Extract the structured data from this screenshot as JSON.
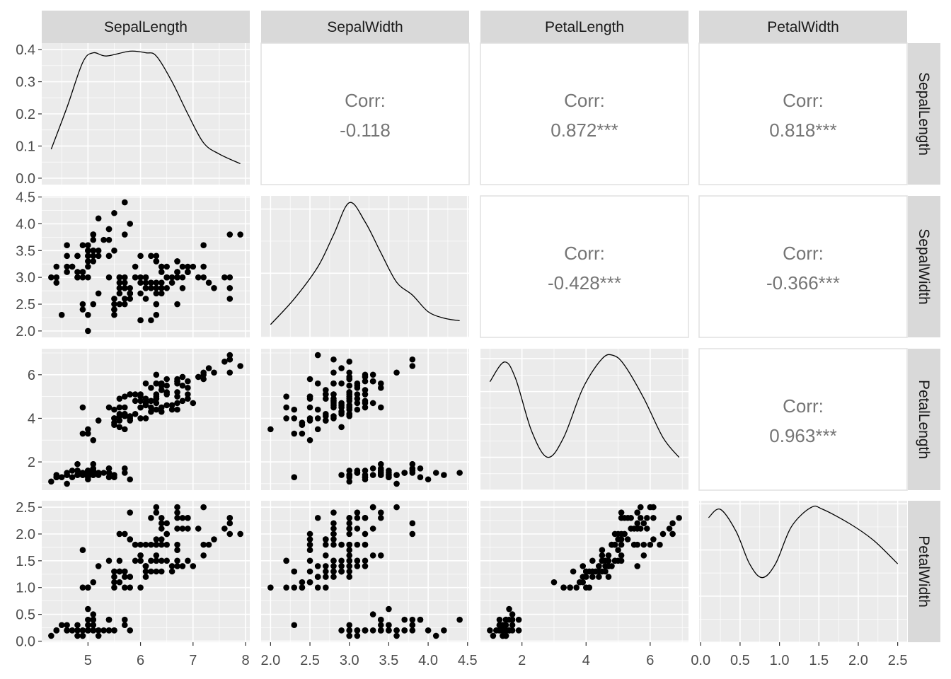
{
  "chart_data": {
    "type": "scatter-matrix",
    "variables": [
      "SepalLength",
      "SepalWidth",
      "PetalLength",
      "PetalWidth"
    ],
    "axes": {
      "SepalLength": {
        "range": [
          4.3,
          7.9
        ],
        "ticks": [
          5,
          6,
          7,
          8
        ],
        "tick_labels": [
          "5",
          "6",
          "7",
          "8"
        ]
      },
      "SepalWidth": {
        "range": [
          2.0,
          4.4
        ],
        "ticks": [
          2.0,
          2.5,
          3.0,
          3.5,
          4.0,
          4.5
        ],
        "tick_labels": [
          "2.0",
          "2.5",
          "3.0",
          "3.5",
          "4.0",
          "4.5"
        ]
      },
      "PetalLength": {
        "range": [
          1.0,
          6.9
        ],
        "ticks": [
          2,
          4,
          6
        ],
        "tick_labels": [
          "2",
          "4",
          "6"
        ]
      },
      "PetalWidth": {
        "range": [
          0.1,
          2.5
        ],
        "ticks": [
          0.0,
          0.5,
          1.0,
          1.5,
          2.0,
          2.5
        ],
        "tick_labels": [
          "0.0",
          "0.5",
          "1.0",
          "1.5",
          "2.0",
          "2.5"
        ]
      }
    },
    "density_axis": {
      "range": [
        0,
        0.4
      ],
      "ticks": [
        0.0,
        0.1,
        0.2,
        0.3,
        0.4
      ],
      "tick_labels": [
        "0.0",
        "0.1",
        "0.2",
        "0.3",
        "0.4"
      ]
    },
    "correlation_label": "Corr:",
    "correlations": [
      {
        "row": "SepalLength",
        "col": "SepalWidth",
        "value": "-0.118"
      },
      {
        "row": "SepalLength",
        "col": "PetalLength",
        "value": "0.872***"
      },
      {
        "row": "SepalLength",
        "col": "PetalWidth",
        "value": "0.818***"
      },
      {
        "row": "SepalWidth",
        "col": "PetalLength",
        "value": "-0.428***"
      },
      {
        "row": "SepalWidth",
        "col": "PetalWidth",
        "value": "-0.366***"
      },
      {
        "row": "PetalLength",
        "col": "PetalWidth",
        "value": "0.963***"
      }
    ],
    "densities": {
      "SepalLength": [
        [
          4.3,
          0.09
        ],
        [
          4.6,
          0.22
        ],
        [
          4.9,
          0.36
        ],
        [
          5.1,
          0.39
        ],
        [
          5.35,
          0.38
        ],
        [
          5.8,
          0.395
        ],
        [
          6.1,
          0.39
        ],
        [
          6.3,
          0.38
        ],
        [
          6.6,
          0.3
        ],
        [
          6.9,
          0.2
        ],
        [
          7.2,
          0.11
        ],
        [
          7.5,
          0.075
        ],
        [
          7.9,
          0.045
        ]
      ],
      "SepalWidth": [
        [
          2.0,
          0.1
        ],
        [
          2.3,
          0.3
        ],
        [
          2.6,
          0.55
        ],
        [
          2.8,
          0.8
        ],
        [
          3.0,
          1.05
        ],
        [
          3.2,
          0.9
        ],
        [
          3.4,
          0.66
        ],
        [
          3.6,
          0.43
        ],
        [
          3.8,
          0.33
        ],
        [
          4.0,
          0.2
        ],
        [
          4.2,
          0.15
        ],
        [
          4.4,
          0.13
        ]
      ],
      "PetalLength": [
        [
          1.0,
          0.33
        ],
        [
          1.45,
          0.39
        ],
        [
          1.8,
          0.34
        ],
        [
          2.3,
          0.18
        ],
        [
          2.8,
          0.1
        ],
        [
          3.3,
          0.16
        ],
        [
          3.9,
          0.31
        ],
        [
          4.5,
          0.4
        ],
        [
          4.85,
          0.41
        ],
        [
          5.2,
          0.38
        ],
        [
          5.8,
          0.28
        ],
        [
          6.4,
          0.16
        ],
        [
          6.9,
          0.1
        ]
      ],
      "PetalWidth": [
        [
          0.1,
          1.35
        ],
        [
          0.25,
          1.44
        ],
        [
          0.45,
          1.2
        ],
        [
          0.62,
          0.85
        ],
        [
          0.78,
          0.7
        ],
        [
          0.95,
          0.85
        ],
        [
          1.15,
          1.25
        ],
        [
          1.4,
          1.46
        ],
        [
          1.55,
          1.44
        ],
        [
          1.9,
          1.28
        ],
        [
          2.2,
          1.1
        ],
        [
          2.5,
          0.85
        ]
      ]
    },
    "points": {
      "SepalLength": [
        5.1,
        4.9,
        4.7,
        4.6,
        5.0,
        5.4,
        4.6,
        5.0,
        4.4,
        4.9,
        5.4,
        4.8,
        4.8,
        4.3,
        5.8,
        5.7,
        5.4,
        5.1,
        5.7,
        5.1,
        5.4,
        5.1,
        4.6,
        5.1,
        4.8,
        5.0,
        5.0,
        5.2,
        5.2,
        4.7,
        4.8,
        5.4,
        5.2,
        5.5,
        4.9,
        5.0,
        5.5,
        4.9,
        4.4,
        5.1,
        5.0,
        4.5,
        4.4,
        5.0,
        5.1,
        4.8,
        5.1,
        4.6,
        5.3,
        5.0,
        7.0,
        6.4,
        6.9,
        5.5,
        6.5,
        5.7,
        6.3,
        4.9,
        6.6,
        5.2,
        5.0,
        5.9,
        6.0,
        6.1,
        5.6,
        6.7,
        5.6,
        5.8,
        6.2,
        5.6,
        5.9,
        6.1,
        6.3,
        6.1,
        6.4,
        6.6,
        6.8,
        6.7,
        6.0,
        5.7,
        5.5,
        5.5,
        5.8,
        6.0,
        5.4,
        6.0,
        6.7,
        6.3,
        5.6,
        5.5,
        5.5,
        6.1,
        5.8,
        5.0,
        5.6,
        5.7,
        5.7,
        6.2,
        5.1,
        5.7,
        6.3,
        5.8,
        7.1,
        6.3,
        6.5,
        7.6,
        4.9,
        7.3,
        6.7,
        7.2,
        6.5,
        6.4,
        6.8,
        5.7,
        5.8,
        6.4,
        6.5,
        7.7,
        7.7,
        6.0,
        6.9,
        5.6,
        7.7,
        6.3,
        6.7,
        7.2,
        6.2,
        6.1,
        6.4,
        7.2,
        7.4,
        7.9,
        6.4,
        6.3,
        6.1,
        7.7,
        6.3,
        6.4,
        6.0,
        6.9,
        6.7,
        6.9,
        5.8,
        6.8,
        6.7,
        6.7,
        6.3,
        6.5,
        6.2,
        5.9
      ],
      "SepalWidth": [
        3.5,
        3.0,
        3.2,
        3.1,
        3.6,
        3.9,
        3.4,
        3.4,
        2.9,
        3.1,
        3.7,
        3.4,
        3.0,
        3.0,
        4.0,
        4.4,
        3.9,
        3.5,
        3.8,
        3.8,
        3.4,
        3.7,
        3.6,
        3.3,
        3.4,
        3.0,
        3.4,
        3.5,
        3.4,
        3.2,
        3.1,
        3.4,
        4.1,
        4.2,
        3.1,
        3.2,
        3.5,
        3.6,
        3.0,
        3.4,
        3.5,
        2.3,
        3.2,
        3.5,
        3.8,
        3.0,
        3.8,
        3.2,
        3.7,
        3.3,
        3.2,
        3.2,
        3.1,
        2.3,
        2.8,
        2.8,
        3.3,
        2.4,
        2.9,
        2.7,
        2.0,
        3.0,
        2.2,
        2.9,
        2.9,
        3.1,
        3.0,
        2.7,
        2.2,
        2.5,
        3.2,
        2.8,
        2.5,
        2.8,
        2.9,
        3.0,
        2.8,
        3.0,
        2.9,
        2.6,
        2.4,
        2.4,
        2.7,
        2.7,
        3.0,
        3.4,
        3.1,
        2.3,
        3.0,
        2.5,
        2.6,
        3.0,
        2.6,
        2.3,
        2.7,
        3.0,
        2.9,
        2.9,
        2.5,
        2.8,
        3.3,
        2.7,
        3.0,
        2.9,
        3.0,
        3.0,
        2.5,
        2.9,
        2.5,
        3.6,
        3.2,
        2.7,
        3.0,
        2.5,
        2.8,
        3.2,
        3.0,
        3.8,
        2.6,
        2.2,
        3.2,
        2.8,
        2.8,
        2.7,
        3.3,
        3.2,
        2.8,
        3.0,
        2.8,
        3.0,
        2.8,
        3.8,
        2.8,
        2.8,
        2.6,
        3.0,
        3.4,
        3.1,
        3.0,
        3.1,
        3.1,
        3.1,
        2.7,
        3.2,
        3.3,
        3.0,
        2.5,
        3.0,
        3.4,
        3.0
      ],
      "PetalLength": [
        1.4,
        1.4,
        1.3,
        1.5,
        1.4,
        1.7,
        1.4,
        1.5,
        1.4,
        1.5,
        1.5,
        1.6,
        1.4,
        1.1,
        1.2,
        1.5,
        1.3,
        1.4,
        1.7,
        1.5,
        1.7,
        1.5,
        1.0,
        1.7,
        1.9,
        1.6,
        1.6,
        1.5,
        1.4,
        1.6,
        1.6,
        1.5,
        1.5,
        1.4,
        1.5,
        1.2,
        1.3,
        1.4,
        1.3,
        1.5,
        1.3,
        1.3,
        1.3,
        1.6,
        1.9,
        1.4,
        1.6,
        1.4,
        1.5,
        1.4,
        4.7,
        4.5,
        4.9,
        4.0,
        4.6,
        4.5,
        4.7,
        3.3,
        4.6,
        3.9,
        3.5,
        4.2,
        4.0,
        4.7,
        3.6,
        4.4,
        4.5,
        4.1,
        4.5,
        3.9,
        4.8,
        4.0,
        4.9,
        4.7,
        4.3,
        4.4,
        4.8,
        5.0,
        4.5,
        3.5,
        3.8,
        3.7,
        3.9,
        5.1,
        4.5,
        4.5,
        4.7,
        4.4,
        4.1,
        4.0,
        4.4,
        4.6,
        4.0,
        3.3,
        4.2,
        4.2,
        4.2,
        4.3,
        3.0,
        4.1,
        6.0,
        5.1,
        5.9,
        5.6,
        5.8,
        6.6,
        4.5,
        6.3,
        5.8,
        6.1,
        5.1,
        5.3,
        5.5,
        5.0,
        5.1,
        5.3,
        5.5,
        6.7,
        6.9,
        5.0,
        5.7,
        4.9,
        6.7,
        4.9,
        5.7,
        6.0,
        4.8,
        4.9,
        5.6,
        5.8,
        6.1,
        6.4,
        5.6,
        5.1,
        5.6,
        6.1,
        5.6,
        5.5,
        4.8,
        5.4,
        5.6,
        5.1,
        5.1,
        5.9,
        5.7,
        5.2,
        5.0,
        5.2,
        5.4,
        5.1
      ],
      "PetalWidth": [
        0.2,
        0.2,
        0.2,
        0.2,
        0.2,
        0.4,
        0.3,
        0.2,
        0.2,
        0.1,
        0.2,
        0.2,
        0.1,
        0.1,
        0.2,
        0.4,
        0.4,
        0.3,
        0.3,
        0.3,
        0.2,
        0.4,
        0.2,
        0.5,
        0.2,
        0.2,
        0.4,
        0.2,
        0.2,
        0.2,
        0.2,
        0.4,
        0.1,
        0.2,
        0.2,
        0.2,
        0.2,
        0.1,
        0.2,
        0.2,
        0.3,
        0.3,
        0.2,
        0.6,
        0.4,
        0.3,
        0.2,
        0.2,
        0.2,
        0.2,
        1.4,
        1.5,
        1.5,
        1.3,
        1.5,
        1.3,
        1.6,
        1.0,
        1.3,
        1.4,
        1.0,
        1.5,
        1.0,
        1.4,
        1.3,
        1.4,
        1.5,
        1.0,
        1.5,
        1.1,
        1.8,
        1.3,
        1.5,
        1.2,
        1.3,
        1.4,
        1.4,
        1.7,
        1.5,
        1.0,
        1.1,
        1.0,
        1.2,
        1.6,
        1.5,
        1.6,
        1.5,
        1.3,
        1.3,
        1.3,
        1.2,
        1.4,
        1.2,
        1.0,
        1.3,
        1.2,
        1.3,
        1.3,
        1.1,
        1.3,
        2.5,
        1.9,
        2.1,
        1.8,
        2.2,
        2.1,
        1.7,
        1.8,
        1.8,
        2.5,
        2.0,
        1.9,
        2.1,
        2.0,
        2.4,
        2.3,
        1.8,
        2.2,
        2.3,
        1.5,
        2.3,
        2.0,
        2.0,
        1.8,
        2.1,
        1.8,
        1.8,
        1.8,
        2.1,
        1.6,
        1.9,
        2.0,
        2.2,
        1.5,
        1.4,
        2.3,
        2.4,
        1.8,
        1.8,
        2.1,
        2.4,
        2.3,
        1.9,
        2.3,
        2.5,
        2.3,
        1.9,
        2.0,
        2.3,
        1.8
      ]
    }
  }
}
